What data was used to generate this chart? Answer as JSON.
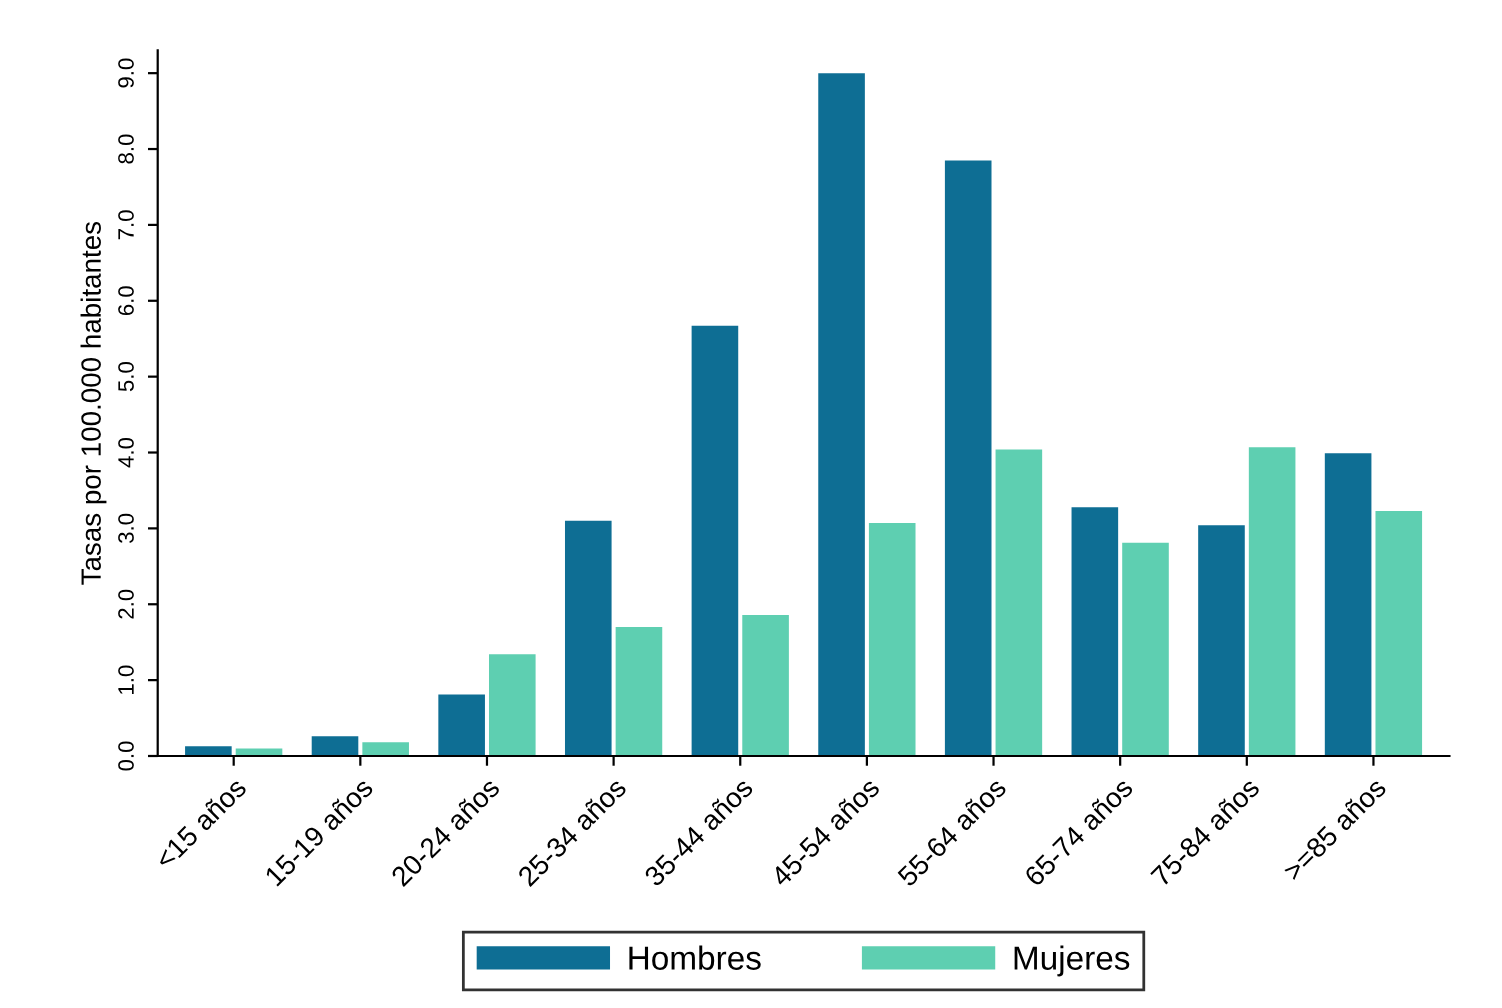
{
  "chart_data": {
    "type": "bar",
    "ylabel": "Tasas por 100.000 habitantes",
    "categories": [
      "<15 años",
      "15-19 años",
      "20-24 años",
      "25-34 años",
      "35-44 años",
      "45-54 años",
      "55-64 años",
      "65-74 años",
      "75-84 años",
      ">=85 años"
    ],
    "series": [
      {
        "name": "Hombres",
        "color": "#0e6e94",
        "values": [
          0.13,
          0.26,
          0.81,
          3.1,
          5.67,
          9.0,
          7.85,
          3.28,
          3.04,
          3.99
        ]
      },
      {
        "name": "Mujeres",
        "color": "#5ecfb1",
        "values": [
          0.1,
          0.18,
          1.34,
          1.7,
          1.86,
          3.07,
          4.04,
          2.81,
          4.07,
          3.23
        ]
      }
    ],
    "ylim": [
      0,
      9.3
    ],
    "yticks": [
      {
        "value": 0,
        "label": "0.0"
      },
      {
        "value": 1,
        "label": "1.0"
      },
      {
        "value": 2,
        "label": "2.0"
      },
      {
        "value": 3,
        "label": "3.0"
      },
      {
        "value": 4,
        "label": "4.0"
      },
      {
        "value": 5,
        "label": "5.0"
      },
      {
        "value": 6,
        "label": "6.0"
      },
      {
        "value": 7,
        "label": "7.0"
      },
      {
        "value": 8,
        "label": "8.0"
      },
      {
        "value": 9,
        "label": "9.0"
      }
    ],
    "grid": false,
    "legend": "bottom"
  }
}
